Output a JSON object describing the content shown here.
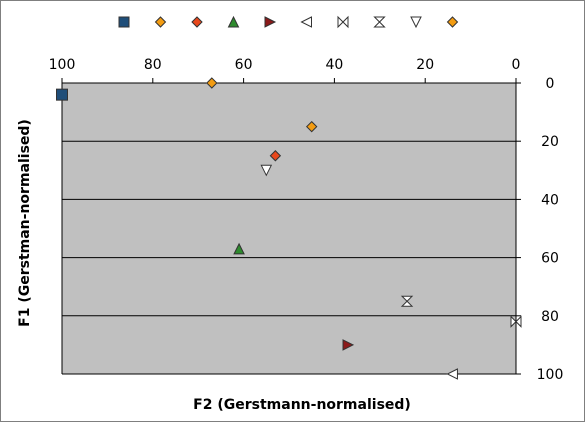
{
  "chart_data": {
    "type": "scatter",
    "title": "",
    "xlabel": "F2 (Gerstmann-normalised)",
    "ylabel": "F1 (Gerstman-normalised)",
    "xlim": [
      100,
      0
    ],
    "ylim": [
      0,
      100
    ],
    "x_reversed": true,
    "y_reversed": true,
    "x_ticks": [
      100,
      80,
      60,
      40,
      20,
      0
    ],
    "y_ticks": [
      0,
      20,
      40,
      60,
      80,
      100
    ],
    "x_axis_position": "top",
    "y_axis_position": "right",
    "grid": "horizontal",
    "plot_background": "#c0c0c0",
    "legend_position": "top",
    "series": [
      {
        "marker": "square",
        "color": "#1f4e79",
        "points": [
          [
            100,
            4
          ]
        ]
      },
      {
        "marker": "diamond",
        "color": "#f39c12",
        "points": [
          [
            67,
            0
          ]
        ]
      },
      {
        "marker": "diamond",
        "color": "#e8481c",
        "points": [
          [
            53,
            25
          ]
        ]
      },
      {
        "marker": "triangle-up",
        "color": "#2e8b2e",
        "points": [
          [
            61,
            57
          ]
        ]
      },
      {
        "marker": "triangle-right",
        "color": "#8b1a1a",
        "points": [
          [
            37,
            90
          ]
        ]
      },
      {
        "marker": "triangle-left",
        "color": "#ffffff",
        "points": [
          [
            14,
            100
          ]
        ]
      },
      {
        "marker": "bowtie",
        "color": "#ffffff",
        "points": [
          [
            0,
            82
          ]
        ]
      },
      {
        "marker": "hourglass",
        "color": "#ffffff",
        "points": [
          [
            24,
            75
          ]
        ]
      },
      {
        "marker": "triangle-down",
        "color": "#ffffff",
        "points": [
          [
            55,
            30
          ]
        ]
      },
      {
        "marker": "diamond",
        "color": "#f39c12",
        "points": [
          [
            45,
            15
          ]
        ]
      }
    ]
  }
}
